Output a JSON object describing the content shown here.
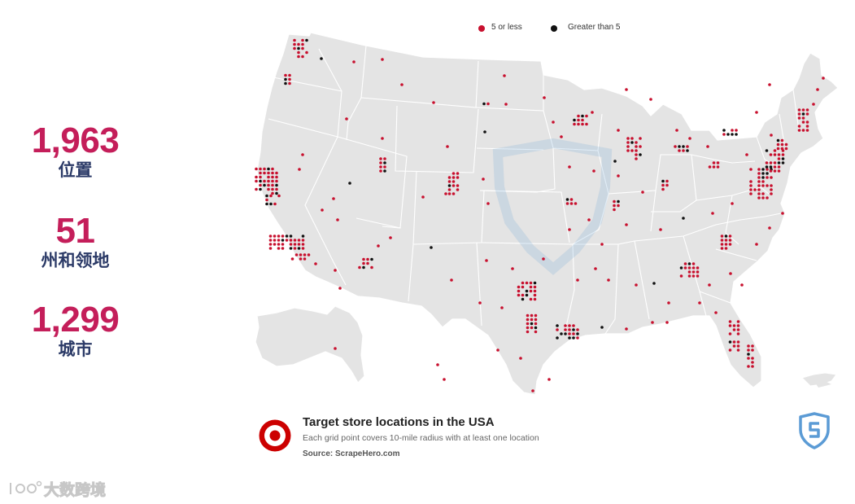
{
  "stats": [
    {
      "value": "1,963",
      "label": "位置"
    },
    {
      "value": "51",
      "label": "州和领地"
    },
    {
      "value": "1,299",
      "label": "城市"
    }
  ],
  "legend": [
    {
      "label": "5 or less",
      "color": "#c8102e"
    },
    {
      "label": "Greater than 5",
      "color": "#111111"
    }
  ],
  "caption": {
    "title": "Target store locations in the USA",
    "subtitle": "Each grid point covers 10-mile radius with at least one location",
    "source": "Source: ScrapeHero.com"
  },
  "watermark": {
    "text": "大数跨境"
  },
  "icons": {
    "target_logo": "target-bullseye-logo",
    "brand_badge": "scrapehero-shield-logo",
    "watermark": "watermark-logo"
  },
  "colors": {
    "stat_value": "#c41e5a",
    "stat_label": "#2b3a67",
    "land": "#e4e4e4",
    "border": "#ffffff",
    "dot_low": "#c8102e",
    "dot_high": "#111111",
    "brand_blue": "#5b9bd5"
  }
}
